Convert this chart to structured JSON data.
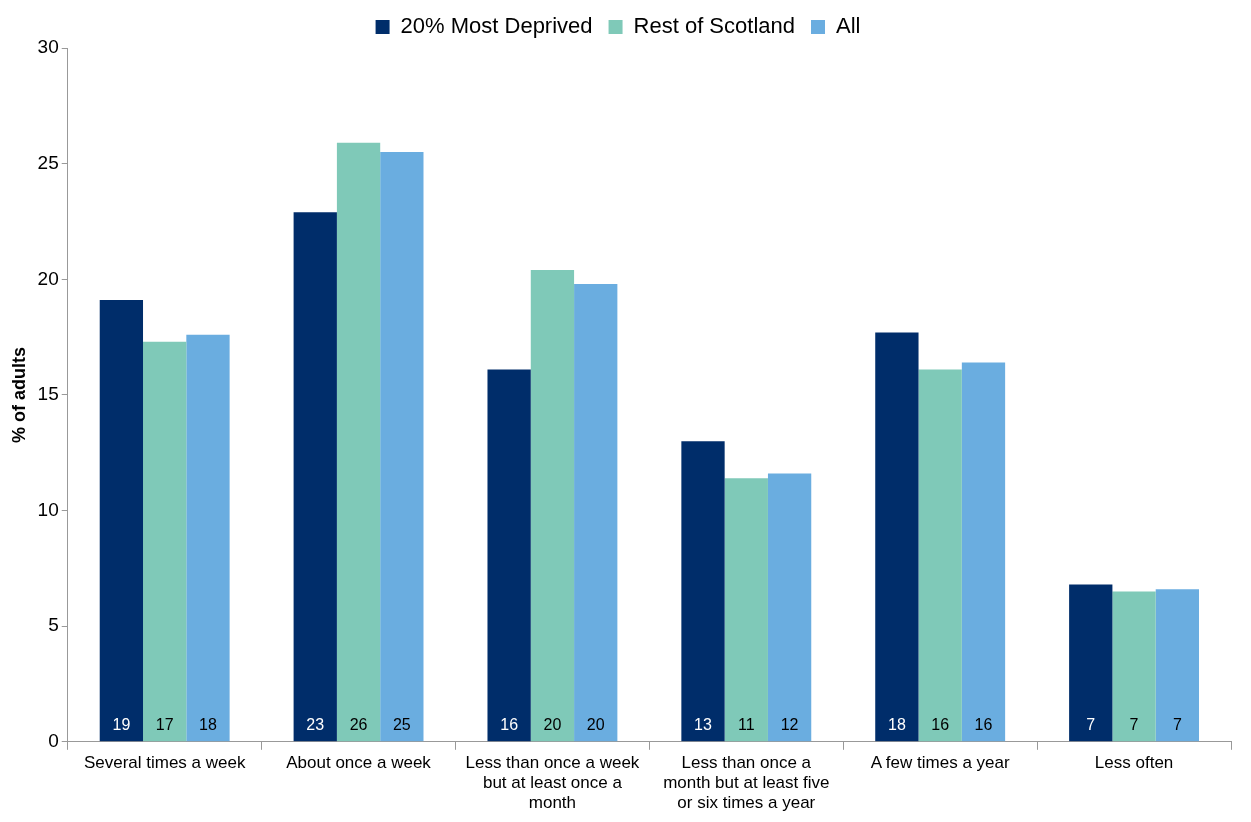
{
  "chart_data": {
    "type": "bar",
    "ylabel": "% of adults",
    "categories": [
      "Several times a week",
      "About once a week",
      "Less than once a week but at least once a month",
      "Less than once a month but at least five or six times a year",
      "A few times a year",
      "Less often"
    ],
    "series": [
      {
        "name": "20% Most Deprived",
        "color": "#002d6a",
        "values": [
          19.1,
          22.9,
          16.1,
          13.0,
          17.7,
          6.8
        ],
        "value_labels": [
          "19",
          "23",
          "16",
          "13",
          "18",
          "7"
        ]
      },
      {
        "name": "Rest of Scotland",
        "color": "#7fc9b8",
        "values": [
          17.3,
          25.9,
          20.4,
          11.4,
          16.1,
          6.5
        ],
        "value_labels": [
          "17",
          "26",
          "20",
          "11",
          "16",
          "7"
        ]
      },
      {
        "name": "All",
        "color": "#6aade0",
        "values": [
          17.6,
          25.5,
          19.8,
          11.6,
          16.4,
          6.6
        ],
        "value_labels": [
          "18",
          "25",
          "20",
          "12",
          "16",
          "7"
        ]
      }
    ],
    "ylim": [
      0,
      30
    ],
    "yticks": [
      0,
      5,
      10,
      15,
      20,
      25,
      30
    ],
    "legend": "top"
  }
}
